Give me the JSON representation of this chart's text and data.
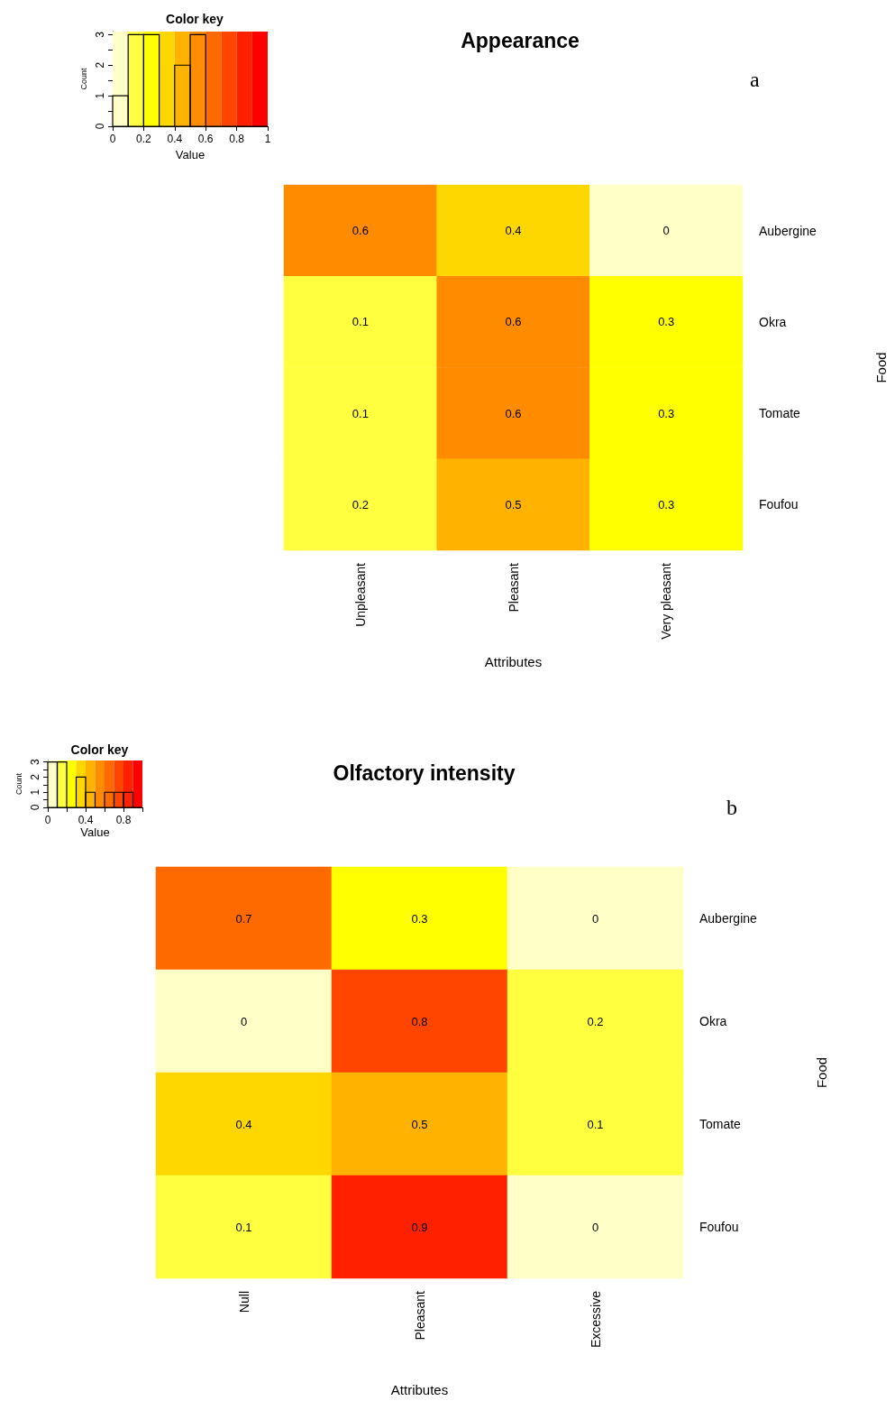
{
  "chart_data": [
    {
      "type": "histogram",
      "title": "Color key",
      "xlabel": "Value",
      "ylabel": "Count",
      "bins": [
        0,
        0.1,
        0.2,
        0.3,
        0.4,
        0.5,
        0.6,
        0.7,
        0.8,
        0.9,
        1
      ],
      "values": [
        1,
        3,
        3,
        0,
        2,
        3,
        0,
        0,
        0,
        0
      ],
      "xlim": [
        0,
        1
      ],
      "xticks": [
        0,
        0.2,
        0.4,
        0.6,
        0.8,
        1
      ],
      "ylim": [
        0,
        3.1
      ],
      "yticks": [
        0,
        {
          "value": 0.5,
          "label": null
        },
        1,
        {
          "value": 1.5,
          "label": null
        },
        2,
        {
          "value": 2.5,
          "label": null
        },
        3
      ],
      "bands": [
        {
          "axis": "x",
          "from": 0,
          "to": 0.1,
          "color": "#ffffc8"
        },
        {
          "axis": "x",
          "from": 0.1,
          "to": 0.2,
          "color": "#ffff40"
        },
        {
          "axis": "x",
          "from": 0.2,
          "to": 0.3,
          "color": "#ffff00"
        },
        {
          "axis": "x",
          "from": 0.3,
          "to": 0.4,
          "color": "#ffd700"
        },
        {
          "axis": "x",
          "from": 0.4,
          "to": 0.5,
          "color": "#ffb300"
        },
        {
          "axis": "x",
          "from": 0.5,
          "to": 0.6,
          "color": "#ff8c00"
        },
        {
          "axis": "x",
          "from": 0.6,
          "to": 0.7,
          "color": "#ff6a00"
        },
        {
          "axis": "x",
          "from": 0.7,
          "to": 0.8,
          "color": "#ff4500"
        },
        {
          "axis": "x",
          "from": 0.8,
          "to": 0.9,
          "color": "#ff2000"
        },
        {
          "axis": "x",
          "from": 0.9,
          "to": 1,
          "color": "#ff0000"
        }
      ]
    },
    {
      "type": "heatmap",
      "title": "Appearance",
      "annotations": [
        "a"
      ],
      "xlabel": "Attributes",
      "ylabel": "Food",
      "categories": [
        "Unpleasant",
        "Pleasant",
        "Very pleasant"
      ],
      "y_categories": [
        "Aubergine",
        "Okra",
        "Tomate",
        "Foufou"
      ],
      "cells": [
        [
          0.6,
          0.4,
          0
        ],
        [
          0.1,
          0.6,
          0.3
        ],
        [
          0.1,
          0.6,
          0.3
        ],
        [
          0.2,
          0.5,
          0.3
        ]
      ],
      "data_labels": true
    },
    {
      "type": "histogram",
      "title": "Color key",
      "xlabel": "Value",
      "ylabel": "Count",
      "bins": [
        0,
        0.1,
        0.2,
        0.3,
        0.4,
        0.5,
        0.6,
        0.7,
        0.8,
        0.9,
        1
      ],
      "values": [
        3,
        3,
        0,
        2,
        1,
        0,
        1,
        1,
        1,
        0
      ],
      "xlim": [
        0,
        1
      ],
      "xticks": [
        0,
        {
          "value": 0.2,
          "label": null
        },
        0.4,
        {
          "value": 0.6,
          "label": null
        },
        0.8,
        {
          "value": 1,
          "label": null
        }
      ],
      "ylim": [
        0,
        3.1
      ],
      "yticks": [
        0,
        {
          "value": 0.5,
          "label": null
        },
        1,
        {
          "value": 1.5,
          "label": null
        },
        2,
        {
          "value": 2.5,
          "label": null
        },
        3
      ],
      "bands": [
        {
          "axis": "x",
          "from": 0,
          "to": 0.1,
          "color": "#ffffc8"
        },
        {
          "axis": "x",
          "from": 0.1,
          "to": 0.2,
          "color": "#ffff40"
        },
        {
          "axis": "x",
          "from": 0.2,
          "to": 0.3,
          "color": "#ffff00"
        },
        {
          "axis": "x",
          "from": 0.3,
          "to": 0.4,
          "color": "#ffd700"
        },
        {
          "axis": "x",
          "from": 0.4,
          "to": 0.5,
          "color": "#ffb300"
        },
        {
          "axis": "x",
          "from": 0.5,
          "to": 0.6,
          "color": "#ff8c00"
        },
        {
          "axis": "x",
          "from": 0.6,
          "to": 0.7,
          "color": "#ff6a00"
        },
        {
          "axis": "x",
          "from": 0.7,
          "to": 0.8,
          "color": "#ff4500"
        },
        {
          "axis": "x",
          "from": 0.8,
          "to": 0.9,
          "color": "#ff2000"
        },
        {
          "axis": "x",
          "from": 0.9,
          "to": 1,
          "color": "#ff0000"
        }
      ]
    },
    {
      "type": "heatmap",
      "title": "Olfactory intensity",
      "annotations": [
        "b"
      ],
      "xlabel": "Attributes",
      "ylabel": "Food",
      "categories": [
        "Null",
        "Pleasant",
        "Excessive"
      ],
      "y_categories": [
        "Aubergine",
        "Okra",
        "Tomate",
        "Foufou"
      ],
      "cells": [
        [
          0.7,
          0.3,
          0
        ],
        [
          0,
          0.8,
          0.2
        ],
        [
          0.4,
          0.5,
          0.1
        ],
        [
          0.1,
          0.9,
          0
        ]
      ],
      "data_labels": true
    }
  ]
}
